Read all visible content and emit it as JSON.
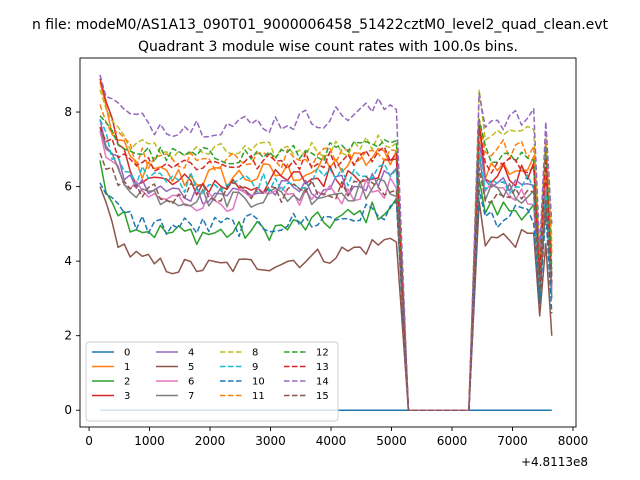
{
  "chart_data": {
    "type": "line",
    "suptitle": "n file: modeM0/AS1A13_090T01_9000006458_51422cztM0_level2_quad_clean.evt",
    "title": "Quadrant 3 module wise count rates with 100.0s bins.",
    "xlabel": "",
    "ylabel": "",
    "offset_text": "+4.8113e8",
    "xlim": [
      -150,
      8050
    ],
    "ylim": [
      -0.45,
      9.45
    ],
    "xticks": [
      0,
      1000,
      2000,
      3000,
      4000,
      5000,
      6000,
      7000,
      8000
    ],
    "xtick_labels": [
      "0",
      "1000",
      "2000",
      "3000",
      "4000",
      "5000",
      "6000",
      "7000",
      "8000"
    ],
    "yticks": [
      0,
      2,
      4,
      6,
      8
    ],
    "ytick_labels": [
      "0",
      "2",
      "4",
      "6",
      "8"
    ],
    "grid": false,
    "legend_location": "lower-left",
    "legend_columns": 4,
    "segments": {
      "seg1": {
        "start": 180,
        "step": 100,
        "count": 50
      },
      "seg2": {
        "start": 6450,
        "step": 100,
        "count": 13
      }
    },
    "series": [
      {
        "name": "0",
        "color": "#1f77b4",
        "style": "solid",
        "base": 0.0,
        "tail": 0.0,
        "end": 0.0,
        "amp": 0.0,
        "gap_value": 0.0
      },
      {
        "name": "1",
        "color": "#ff7f0e",
        "style": "solid",
        "base": 6.2,
        "tail": 6.9,
        "end": 4.2,
        "amp": 0.35,
        "start_value": 8.8,
        "seg2_first": 7.6,
        "seg2_base": 6.5
      },
      {
        "name": "2",
        "color": "#2ca02c",
        "style": "solid",
        "base": 4.7,
        "tail": 5.5,
        "end": 3.0,
        "amp": 0.3,
        "start_value": 6.7,
        "seg2_first": 6.2,
        "seg2_base": 5.4
      },
      {
        "name": "3",
        "color": "#d62728",
        "style": "solid",
        "base": 6.0,
        "tail": 6.6,
        "end": 3.6,
        "amp": 0.35,
        "start_value": 8.9,
        "seg2_first": 7.8,
        "seg2_base": 6.3
      },
      {
        "name": "4",
        "color": "#9467bd",
        "style": "solid",
        "base": 5.8,
        "tail": 6.2,
        "end": 3.3,
        "amp": 0.3,
        "start_value": 7.8,
        "seg2_first": 7.2,
        "seg2_base": 6.0
      },
      {
        "name": "5",
        "color": "#8c564b",
        "style": "solid",
        "base": 3.8,
        "tail": 4.6,
        "end": 2.0,
        "amp": 0.25,
        "start_value": 6.0,
        "seg2_first": 5.6,
        "seg2_base": 4.6
      },
      {
        "name": "6",
        "color": "#e377c2",
        "style": "solid",
        "base": 5.6,
        "tail": 6.0,
        "end": 3.2,
        "amp": 0.3,
        "start_value": 7.5,
        "seg2_first": 6.8,
        "seg2_base": 5.8
      },
      {
        "name": "7",
        "color": "#7f7f7f",
        "style": "solid",
        "base": 5.7,
        "tail": 6.0,
        "end": 3.0,
        "amp": 0.3,
        "start_value": 7.6,
        "seg2_first": 6.9,
        "seg2_base": 5.8
      },
      {
        "name": "8",
        "color": "#bcbd22",
        "style": "dashed",
        "base": 6.9,
        "tail": 7.2,
        "end": 4.6,
        "amp": 0.25,
        "start_value": 8.6,
        "seg2_first": 8.6,
        "seg2_base": 7.4
      },
      {
        "name": "9",
        "color": "#17becf",
        "style": "dashed",
        "base": 6.1,
        "tail": 6.4,
        "end": 3.6,
        "amp": 0.3,
        "start_value": 7.8,
        "seg2_first": 6.9,
        "seg2_base": 6.1
      },
      {
        "name": "10",
        "color": "#1f77b4",
        "style": "dashed",
        "base": 4.9,
        "tail": 5.4,
        "end": 2.6,
        "amp": 0.3,
        "start_value": 6.1,
        "seg2_first": 5.9,
        "seg2_base": 5.2
      },
      {
        "name": "11",
        "color": "#ff7f0e",
        "style": "dashed",
        "base": 6.6,
        "tail": 7.0,
        "end": 4.4,
        "amp": 0.3,
        "start_value": 8.2,
        "seg2_first": 7.8,
        "seg2_base": 7.0
      },
      {
        "name": "12",
        "color": "#2ca02c",
        "style": "dashed",
        "base": 6.8,
        "tail": 7.1,
        "end": 3.8,
        "amp": 0.25,
        "start_value": 7.9,
        "seg2_first": 7.8,
        "seg2_base": 6.9
      },
      {
        "name": "13",
        "color": "#d62728",
        "style": "dashed",
        "base": 6.6,
        "tail": 6.9,
        "end": 3.4,
        "amp": 0.25,
        "start_value": 7.6,
        "seg2_first": 7.6,
        "seg2_base": 6.6
      },
      {
        "name": "14",
        "color": "#9467bd",
        "style": "dashed",
        "base": 7.6,
        "tail": 8.2,
        "end": 5.0,
        "amp": 0.3,
        "start_value": 9.0,
        "seg2_first": 8.5,
        "seg2_base": 7.8
      },
      {
        "name": "15",
        "color": "#8c564b",
        "style": "dashed",
        "base": 5.8,
        "tail": 6.1,
        "end": 3.4,
        "amp": 0.3,
        "start_value": 6.9,
        "seg2_first": 6.5,
        "seg2_base": 5.8
      }
    ]
  }
}
